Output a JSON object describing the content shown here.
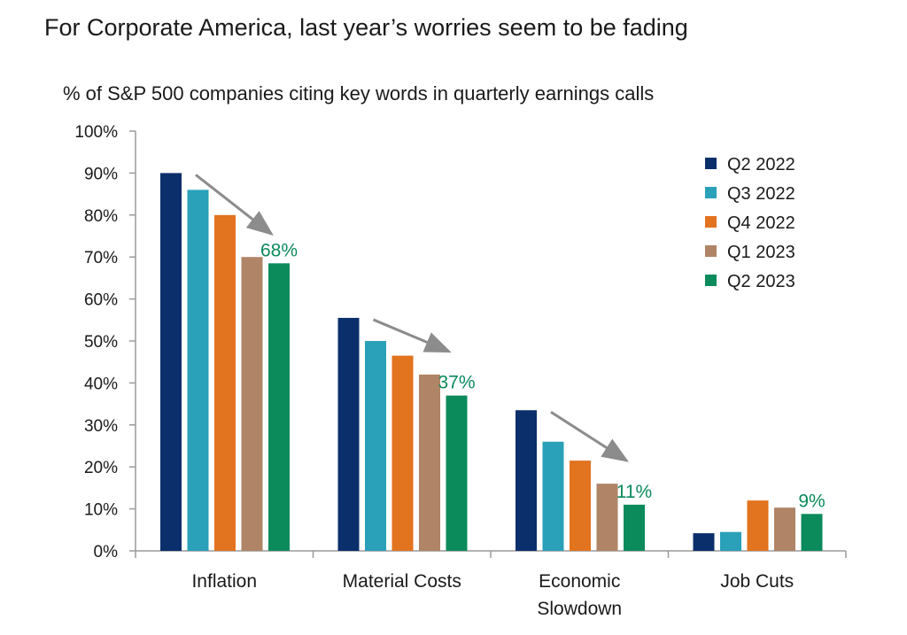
{
  "page": {
    "title": "For Corporate America, last year’s worries seem to be fading"
  },
  "chart_data": {
    "type": "bar",
    "title": "For Corporate America, last year’s worries seem to be fading",
    "subtitle": "% of S&P 500 companies citing key words in quarterly earnings calls",
    "xlabel": "",
    "ylabel": "",
    "ylim": [
      0,
      100
    ],
    "yticks": [
      "0%",
      "10%",
      "20%",
      "30%",
      "40%",
      "50%",
      "60%",
      "70%",
      "80%",
      "90%",
      "100%"
    ],
    "categories": [
      [
        "Inflation"
      ],
      [
        "Material Costs"
      ],
      [
        "Economic",
        "Slowdown"
      ],
      [
        "Job Cuts"
      ]
    ],
    "series": [
      {
        "name": "Q2 2022",
        "color": "#0b2f6b",
        "values": [
          90,
          55.5,
          33.5,
          4.2
        ]
      },
      {
        "name": "Q3 2022",
        "color": "#2aa0b9",
        "values": [
          86,
          50,
          26,
          4.5
        ]
      },
      {
        "name": "Q4 2022",
        "color": "#e2731f",
        "values": [
          80,
          46.5,
          21.5,
          12
        ]
      },
      {
        "name": "Q1 2023",
        "color": "#b08466",
        "values": [
          70,
          42,
          16,
          10.3
        ]
      },
      {
        "name": "Q2 2023",
        "color": "#0b8a5c",
        "values": [
          68.5,
          37,
          11,
          8.8
        ]
      }
    ],
    "data_labels": [
      {
        "category_index": 0,
        "series_index": 4,
        "text": "68%"
      },
      {
        "category_index": 1,
        "series_index": 4,
        "text": "37%"
      },
      {
        "category_index": 2,
        "series_index": 4,
        "text": "11%"
      },
      {
        "category_index": 3,
        "series_index": 4,
        "text": "9%"
      }
    ],
    "trend_arrows": [
      {
        "category_index": 0
      },
      {
        "category_index": 1
      },
      {
        "category_index": 2
      }
    ],
    "legend": "top-right",
    "grid": false,
    "colors": {
      "arrow": "#8c8c8c",
      "axis": "#9a9a9a",
      "label_accent": "#0b8a5c"
    }
  }
}
